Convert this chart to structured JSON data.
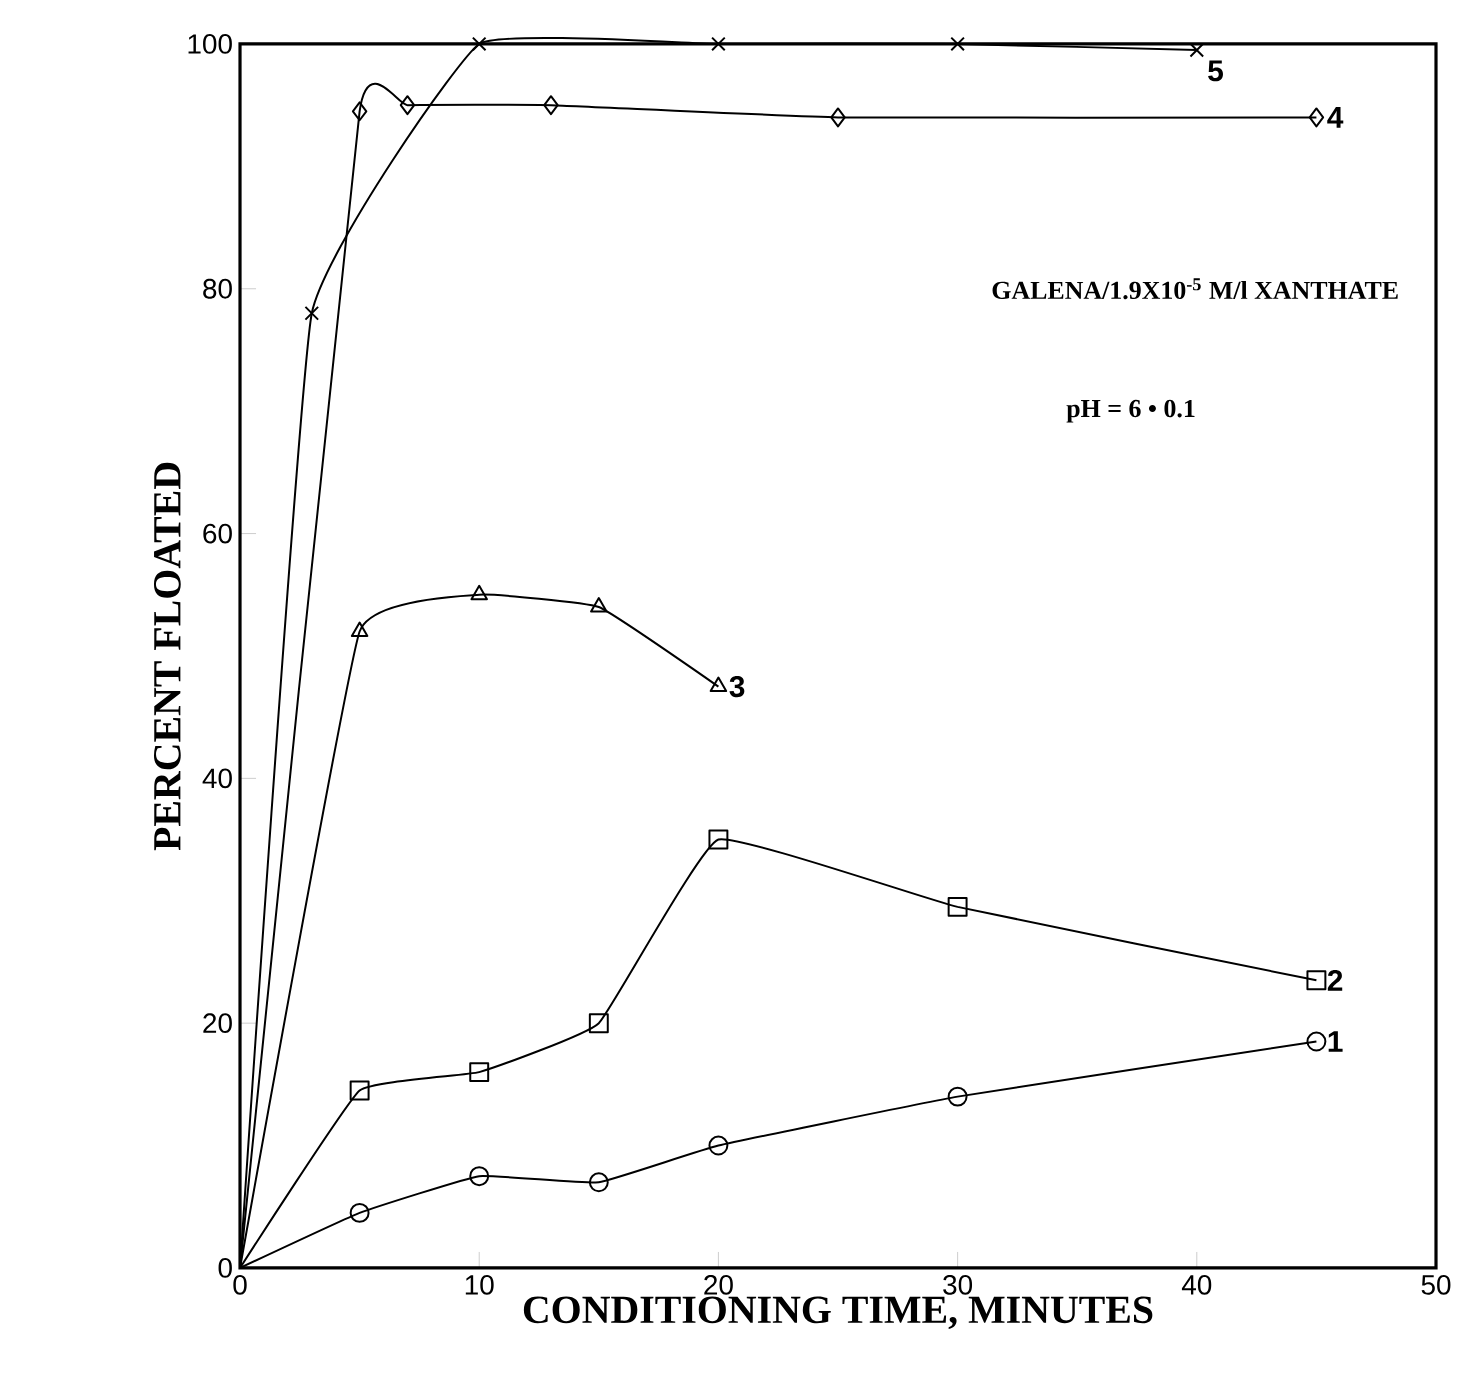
{
  "chart_data": {
    "type": "line",
    "xlabel": "CONDITIONING TIME, MINUTES",
    "ylabel": "PERCENT FLOATED",
    "annotations": [
      "GALENA/1.9X10$^{-5}$ M/l XANTHATE",
      "pH = 6 • 0.1"
    ],
    "series": [
      {
        "name": "1",
        "color": "#000000",
        "marker": "circle",
        "x": [
          0,
          5,
          10,
          15,
          20,
          30,
          45
        ],
        "values": [
          0,
          4.5,
          7.5,
          7,
          10,
          14,
          18.5
        ]
      },
      {
        "name": "2",
        "color": "#000000",
        "marker": "square",
        "x": [
          0,
          5,
          10,
          15,
          20,
          30,
          45
        ],
        "values": [
          0,
          14.5,
          16,
          20,
          35,
          29.5,
          23.5
        ]
      },
      {
        "name": "3",
        "color": "#000000",
        "marker": "triangle",
        "x": [
          0,
          5,
          10,
          15,
          20
        ],
        "values": [
          0,
          52,
          55,
          54,
          47.5
        ]
      },
      {
        "name": "4",
        "color": "#000000",
        "marker": "diamond",
        "x": [
          0,
          5,
          7,
          13,
          25,
          45
        ],
        "values": [
          0,
          94.5,
          95,
          95,
          94,
          94
        ]
      },
      {
        "name": "5",
        "color": "#000000",
        "marker": "cross",
        "x": [
          0,
          3,
          10,
          20,
          30,
          40
        ],
        "values": [
          0,
          78,
          100,
          100,
          100,
          99.5
        ]
      }
    ],
    "xlim": [
      0,
      50
    ],
    "ylim": [
      0,
      100
    ],
    "xticks": [
      0,
      10,
      20,
      30,
      40,
      50
    ],
    "yticks": [
      0,
      20,
      40,
      60,
      80,
      100
    ],
    "line_style": "solid",
    "grid": false
  }
}
